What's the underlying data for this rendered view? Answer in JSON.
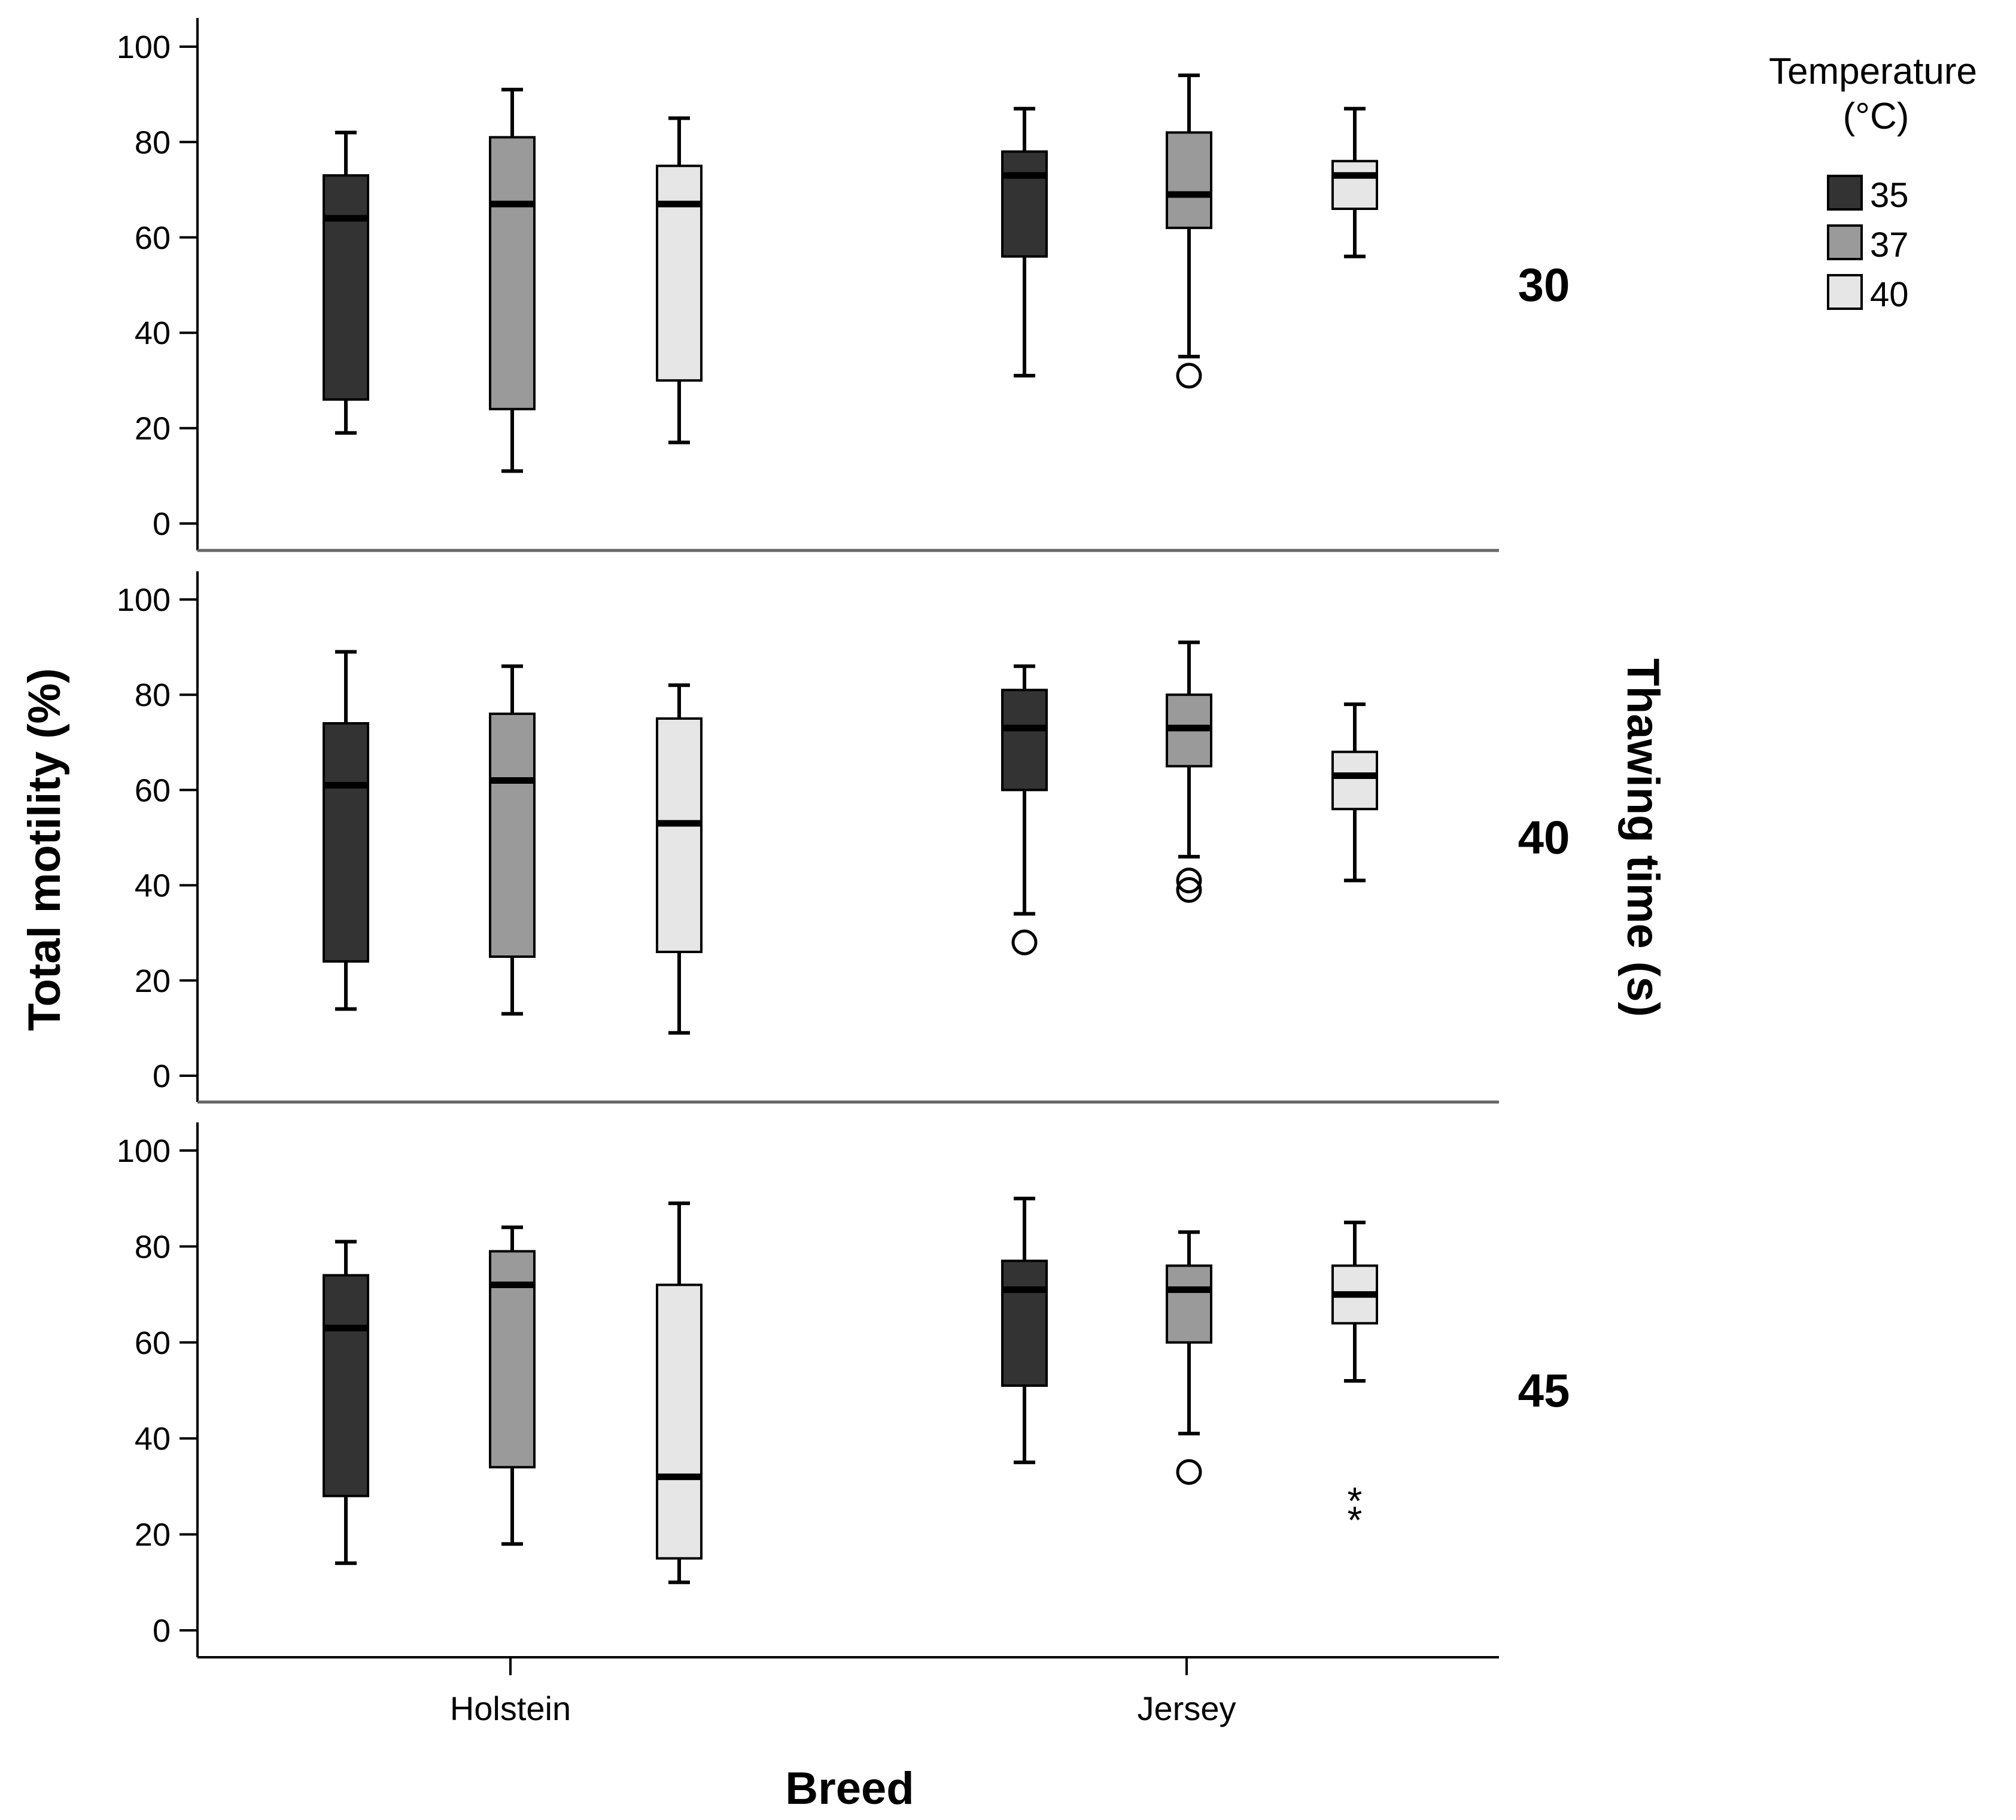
{
  "chart_data": {
    "type": "boxplot",
    "xlabel": "Breed",
    "ylabel": "Total motility (%)",
    "facet_label": "Thawing time (s)",
    "ylim": [
      0,
      100
    ],
    "yticks": [
      "0",
      "20",
      "40",
      "60",
      "80",
      "100"
    ],
    "categories": [
      "Holstein",
      "Jersey"
    ],
    "legend": {
      "title_line1": "Temperature",
      "title_line2": "(°C)",
      "entries": [
        {
          "label": "35",
          "color": "#333333"
        },
        {
          "label": "37",
          "color": "#9a9a9a"
        },
        {
          "label": "40",
          "color": "#e6e6e6"
        }
      ]
    },
    "panels": [
      {
        "label": "30",
        "groups": [
          {
            "category": "Holstein",
            "temperature": "35",
            "min": 19,
            "q1": 26,
            "median": 64,
            "q3": 73,
            "max": 82,
            "outliers": [],
            "extremes": []
          },
          {
            "category": "Holstein",
            "temperature": "37",
            "min": 11,
            "q1": 24,
            "median": 67,
            "q3": 81,
            "max": 91,
            "outliers": [],
            "extremes": []
          },
          {
            "category": "Holstein",
            "temperature": "40",
            "min": 17,
            "q1": 30,
            "median": 67,
            "q3": 75,
            "max": 85,
            "outliers": [],
            "extremes": []
          },
          {
            "category": "Jersey",
            "temperature": "35",
            "min": 31,
            "q1": 56,
            "median": 73,
            "q3": 78,
            "max": 87,
            "outliers": [],
            "extremes": []
          },
          {
            "category": "Jersey",
            "temperature": "37",
            "min": 35,
            "q1": 62,
            "median": 69,
            "q3": 82,
            "max": 94,
            "outliers": [
              31
            ],
            "extremes": []
          },
          {
            "category": "Jersey",
            "temperature": "40",
            "min": 56,
            "q1": 66,
            "median": 73,
            "q3": 76,
            "max": 87,
            "outliers": [],
            "extremes": []
          }
        ]
      },
      {
        "label": "40",
        "groups": [
          {
            "category": "Holstein",
            "temperature": "35",
            "min": 14,
            "q1": 24,
            "median": 61,
            "q3": 74,
            "max": 89,
            "outliers": [],
            "extremes": []
          },
          {
            "category": "Holstein",
            "temperature": "37",
            "min": 13,
            "q1": 25,
            "median": 62,
            "q3": 76,
            "max": 86,
            "outliers": [],
            "extremes": []
          },
          {
            "category": "Holstein",
            "temperature": "40",
            "min": 9,
            "q1": 26,
            "median": 53,
            "q3": 75,
            "max": 82,
            "outliers": [],
            "extremes": []
          },
          {
            "category": "Jersey",
            "temperature": "35",
            "min": 34,
            "q1": 60,
            "median": 73,
            "q3": 81,
            "max": 86,
            "outliers": [
              28
            ],
            "extremes": []
          },
          {
            "category": "Jersey",
            "temperature": "37",
            "min": 46,
            "q1": 65,
            "median": 73,
            "q3": 80,
            "max": 91,
            "outliers": [
              41,
              39
            ],
            "extremes": []
          },
          {
            "category": "Jersey",
            "temperature": "40",
            "min": 41,
            "q1": 56,
            "median": 63,
            "q3": 68,
            "max": 78,
            "outliers": [],
            "extremes": []
          }
        ]
      },
      {
        "label": "45",
        "groups": [
          {
            "category": "Holstein",
            "temperature": "35",
            "min": 14,
            "q1": 28,
            "median": 63,
            "q3": 74,
            "max": 81,
            "outliers": [],
            "extremes": []
          },
          {
            "category": "Holstein",
            "temperature": "37",
            "min": 18,
            "q1": 34,
            "median": 72,
            "q3": 79,
            "max": 84,
            "outliers": [],
            "extremes": []
          },
          {
            "category": "Holstein",
            "temperature": "40",
            "min": 10,
            "q1": 15,
            "median": 32,
            "q3": 72,
            "max": 89,
            "outliers": [],
            "extremes": []
          },
          {
            "category": "Jersey",
            "temperature": "35",
            "min": 35,
            "q1": 51,
            "median": 71,
            "q3": 77,
            "max": 90,
            "outliers": [],
            "extremes": []
          },
          {
            "category": "Jersey",
            "temperature": "37",
            "min": 41,
            "q1": 60,
            "median": 71,
            "q3": 76,
            "max": 83,
            "outliers": [
              33
            ],
            "extremes": []
          },
          {
            "category": "Jersey",
            "temperature": "40",
            "min": 52,
            "q1": 64,
            "median": 70,
            "q3": 76,
            "max": 85,
            "outliers": [],
            "extremes": [
              28,
              24
            ]
          }
        ]
      }
    ]
  }
}
